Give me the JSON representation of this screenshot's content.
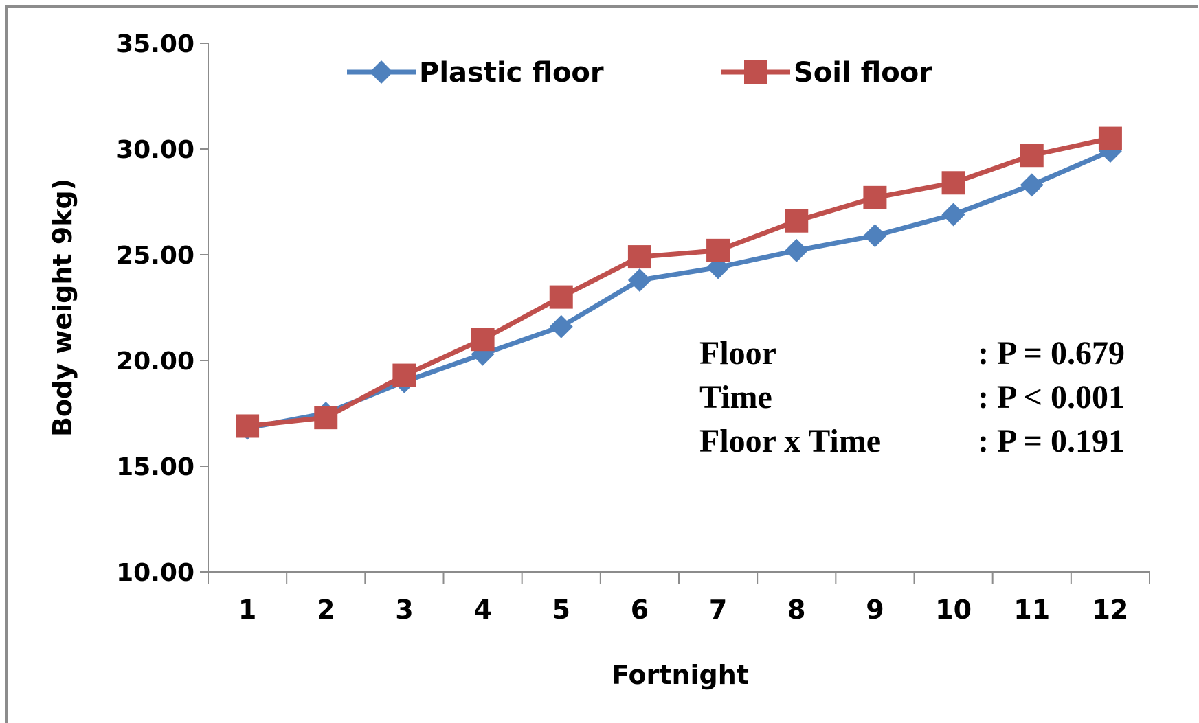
{
  "chart_data": {
    "type": "line",
    "title": "",
    "xlabel": "Fortnight",
    "ylabel": "Body weight 9kg)",
    "ylim": [
      10,
      35
    ],
    "y_ticks": [
      "10.00",
      "15.00",
      "20.00",
      "25.00",
      "30.00",
      "35.00"
    ],
    "categories": [
      "1",
      "2",
      "3",
      "4",
      "5",
      "6",
      "7",
      "8",
      "9",
      "10",
      "11",
      "12"
    ],
    "grid": false,
    "legend_position": "top",
    "series": [
      {
        "name": "Plastic floor",
        "color": "#4f81bd",
        "marker": "diamond",
        "values": [
          16.8,
          17.5,
          19.0,
          20.3,
          21.6,
          23.8,
          24.4,
          25.2,
          25.9,
          26.9,
          28.3,
          29.9
        ]
      },
      {
        "name": "Soil floor",
        "color": "#c0504d",
        "marker": "square",
        "values": [
          16.9,
          17.3,
          19.3,
          21.0,
          23.0,
          24.9,
          25.2,
          26.6,
          27.7,
          28.4,
          29.7,
          30.5
        ]
      }
    ],
    "annotations": [
      {
        "label": "Floor",
        "value": ": P = 0.679"
      },
      {
        "label": "Time",
        "value": ": P < 0.001"
      },
      {
        "label": "Floor x Time",
        "value": ": P = 0.191"
      }
    ]
  }
}
